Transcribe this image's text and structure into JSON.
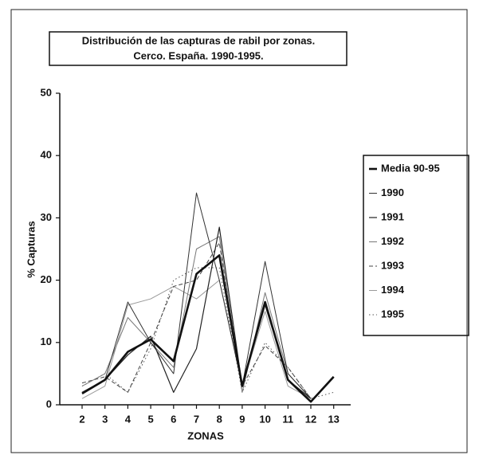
{
  "chart_data": {
    "type": "line",
    "title": [
      "Distribución de las capturas de rabil por zonas.",
      "Cerco. España. 1990-1995."
    ],
    "x_label": "ZONAS",
    "y_label": "% Capturas",
    "categories": [
      "2",
      "3",
      "4",
      "5",
      "6",
      "7",
      "8",
      "9",
      "10",
      "11",
      "12",
      "13"
    ],
    "ylim": [
      0,
      50
    ],
    "yticks": [
      0,
      10,
      20,
      30,
      40,
      50
    ],
    "legend": "right",
    "series": [
      {
        "name": "Media 90-95",
        "color": "#111",
        "width": 2.6,
        "dash": "none",
        "values": [
          1.8,
          4,
          8.5,
          10.5,
          7,
          21,
          24,
          3,
          16.5,
          4,
          0.5,
          4.5
        ]
      },
      {
        "name": "1990",
        "color": "#333",
        "width": 1,
        "dash": "none",
        "values": [
          2,
          4,
          16.5,
          10,
          5,
          34,
          20,
          3,
          23,
          5,
          1,
          null
        ]
      },
      {
        "name": "1991",
        "color": "#222",
        "width": 1.2,
        "dash": "none",
        "values": [
          2,
          4,
          8,
          11,
          2,
          9,
          28.5,
          3,
          16,
          4,
          1,
          null
        ]
      },
      {
        "name": "1992",
        "color": "#777",
        "width": 1,
        "dash": "none",
        "values": [
          3,
          5,
          14,
          10,
          6,
          25,
          27,
          2,
          18,
          5,
          1,
          null
        ]
      },
      {
        "name": "1993",
        "color": "#444",
        "width": 1,
        "dash": "5 3",
        "values": [
          3.5,
          4.5,
          2,
          10,
          19,
          20,
          26,
          3,
          9.5,
          6,
          1,
          null
        ]
      },
      {
        "name": "1994",
        "color": "#999",
        "width": 1,
        "dash": "none",
        "values": [
          1,
          3,
          16,
          17,
          19,
          17,
          20,
          3,
          15,
          3,
          1,
          null
        ]
      },
      {
        "name": "1995",
        "color": "#555",
        "width": 1,
        "dash": "1.5 3",
        "values": [
          3,
          5,
          2,
          9,
          20,
          22,
          22,
          2,
          10,
          6,
          1,
          2
        ]
      }
    ]
  }
}
